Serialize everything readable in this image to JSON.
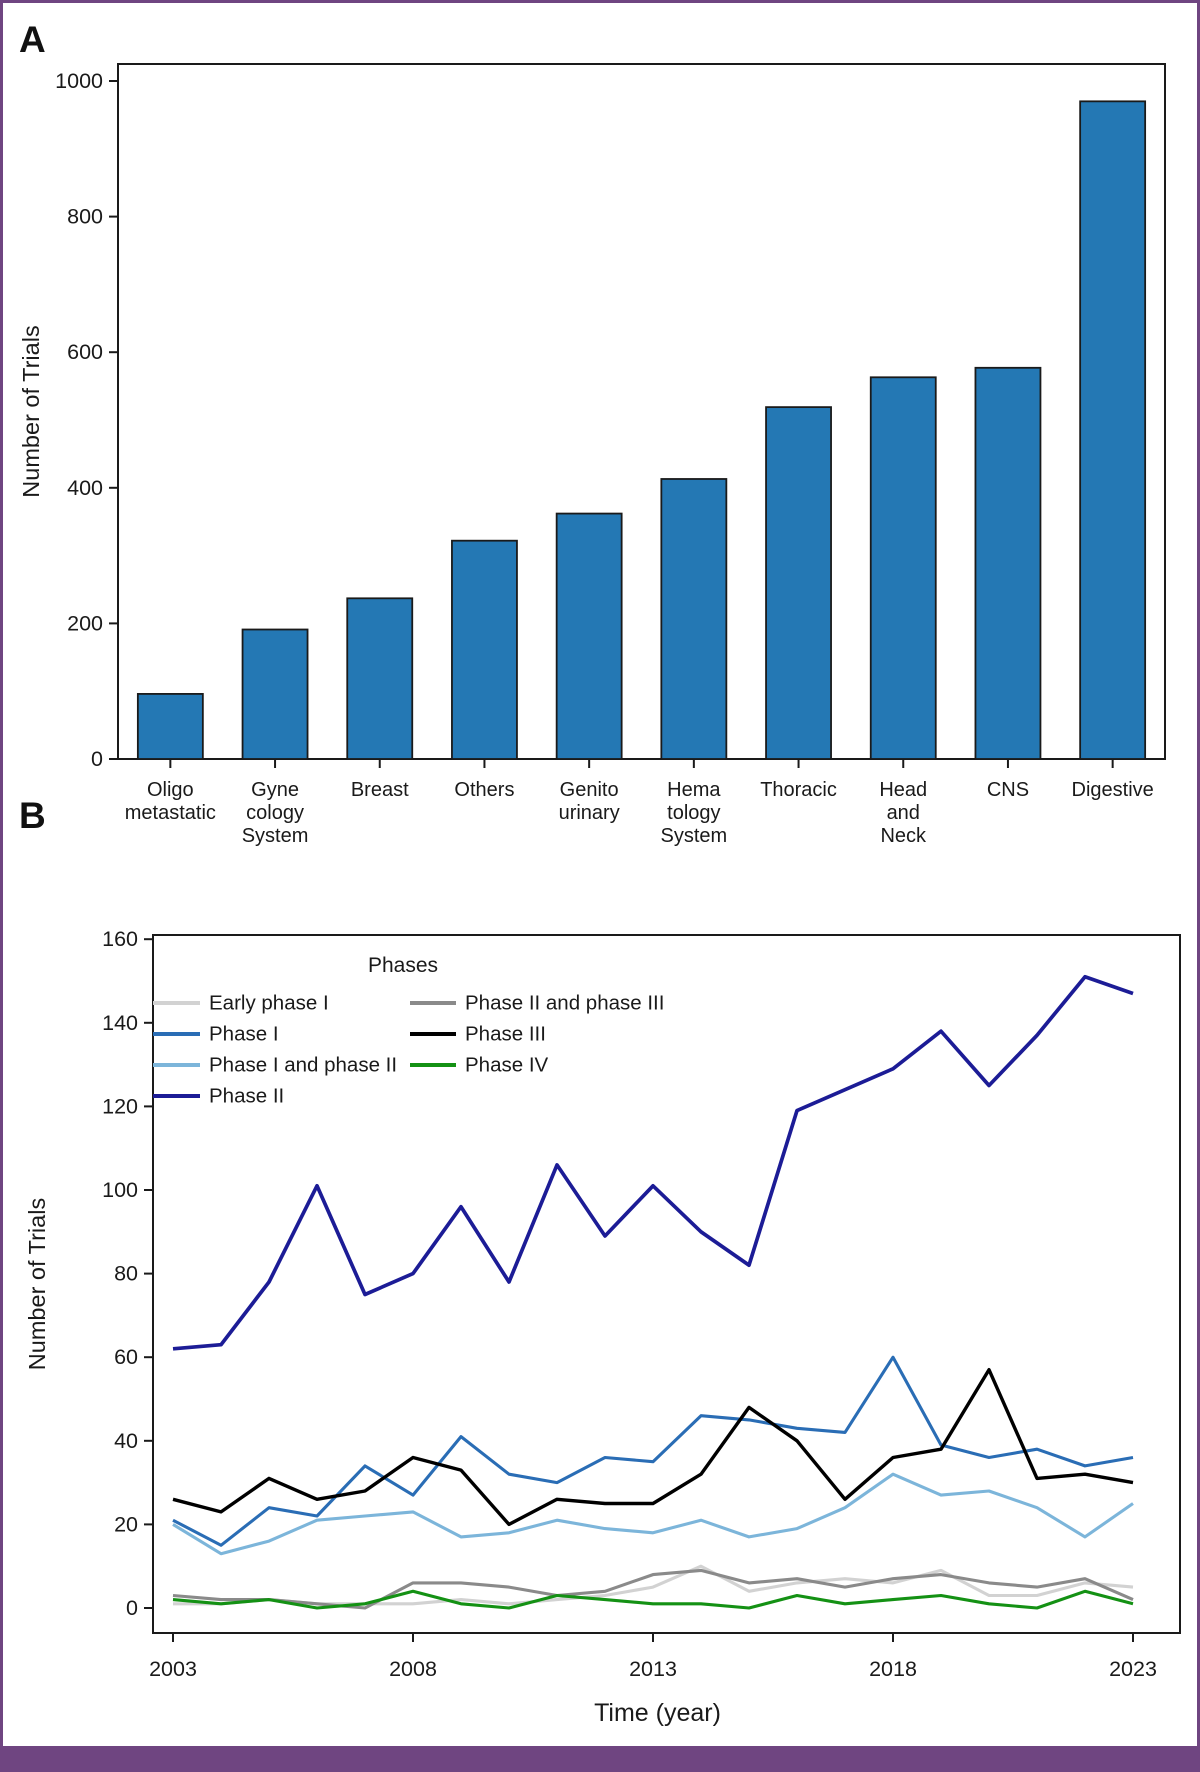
{
  "figure": {
    "border_color": "#6f4581",
    "background": "#ffffff",
    "panel_a_label": "A",
    "panel_b_label": "B"
  },
  "chart_data": [
    {
      "type": "bar",
      "panel_label": "A",
      "title": "",
      "xlabel": "",
      "ylabel": "Number of Trials",
      "ylim": [
        0,
        1000
      ],
      "yticks": [
        0,
        200,
        400,
        600,
        800,
        1000
      ],
      "bar_color": "#2478b4",
      "bar_edge_color": "#1a1a1a",
      "categories": [
        [
          "Oligo",
          "metastatic"
        ],
        [
          "Gyne",
          "cology",
          "System"
        ],
        [
          "Breast"
        ],
        [
          "Others"
        ],
        [
          "Genito",
          "urinary"
        ],
        [
          "Hema",
          "tology",
          "System"
        ],
        [
          "Thoracic"
        ],
        [
          "Head",
          "and",
          "Neck"
        ],
        [
          "CNS"
        ],
        [
          "Digestive"
        ]
      ],
      "values": [
        96,
        191,
        237,
        322,
        362,
        413,
        519,
        563,
        577,
        970
      ]
    },
    {
      "type": "line",
      "panel_label": "B",
      "title": "",
      "xlabel": "Time (year)",
      "ylabel": "Number of Trials",
      "ylim": [
        0,
        160
      ],
      "yticks": [
        0,
        20,
        40,
        60,
        80,
        100,
        120,
        140,
        160
      ],
      "x": [
        2003,
        2004,
        2005,
        2006,
        2007,
        2008,
        2009,
        2010,
        2011,
        2012,
        2013,
        2014,
        2015,
        2016,
        2017,
        2018,
        2019,
        2020,
        2021,
        2022,
        2023
      ],
      "xticks": [
        2003,
        2008,
        2013,
        2018,
        2023
      ],
      "legend_title": "Phases",
      "legend_columns": [
        [
          0,
          1,
          2,
          3
        ],
        [
          4,
          5,
          6
        ]
      ],
      "draw_order": [
        0,
        4,
        6,
        2,
        1,
        5,
        3
      ],
      "series": [
        {
          "name": "Early phase I",
          "color": "#d2d2d2",
          "values": [
            1,
            1,
            2,
            1,
            1,
            1,
            2,
            1,
            2,
            3,
            5,
            10,
            4,
            6,
            7,
            6,
            9,
            3,
            3,
            6,
            5
          ]
        },
        {
          "name": "Phase I",
          "color": "#2a6db5",
          "values": [
            21,
            15,
            24,
            22,
            34,
            27,
            41,
            32,
            30,
            36,
            35,
            46,
            45,
            43,
            42,
            60,
            39,
            36,
            38,
            34,
            36
          ]
        },
        {
          "name": "Phase I and phase II",
          "color": "#7cb5da",
          "values": [
            20,
            13,
            16,
            21,
            22,
            23,
            17,
            18,
            21,
            19,
            18,
            21,
            17,
            19,
            24,
            32,
            27,
            28,
            24,
            17,
            25
          ]
        },
        {
          "name": "Phase II",
          "color": "#1c1c96",
          "values": [
            62,
            63,
            78,
            101,
            75,
            80,
            96,
            78,
            106,
            89,
            101,
            90,
            82,
            119,
            124,
            129,
            138,
            125,
            137,
            151,
            147
          ]
        },
        {
          "name": "Phase II and phase III",
          "color": "#8a8a8a",
          "values": [
            3,
            2,
            2,
            1,
            0,
            6,
            6,
            5,
            3,
            4,
            8,
            9,
            6,
            7,
            5,
            7,
            8,
            6,
            5,
            7,
            2
          ]
        },
        {
          "name": "Phase III",
          "color": "#000000",
          "values": [
            26,
            23,
            31,
            26,
            28,
            36,
            33,
            20,
            26,
            25,
            25,
            32,
            48,
            40,
            26,
            36,
            38,
            57,
            31,
            32,
            30
          ]
        },
        {
          "name": "Phase IV",
          "color": "#149114",
          "values": [
            2,
            1,
            2,
            0,
            1,
            4,
            1,
            0,
            3,
            2,
            1,
            1,
            0,
            3,
            1,
            2,
            3,
            1,
            0,
            4,
            1
          ]
        }
      ]
    }
  ]
}
